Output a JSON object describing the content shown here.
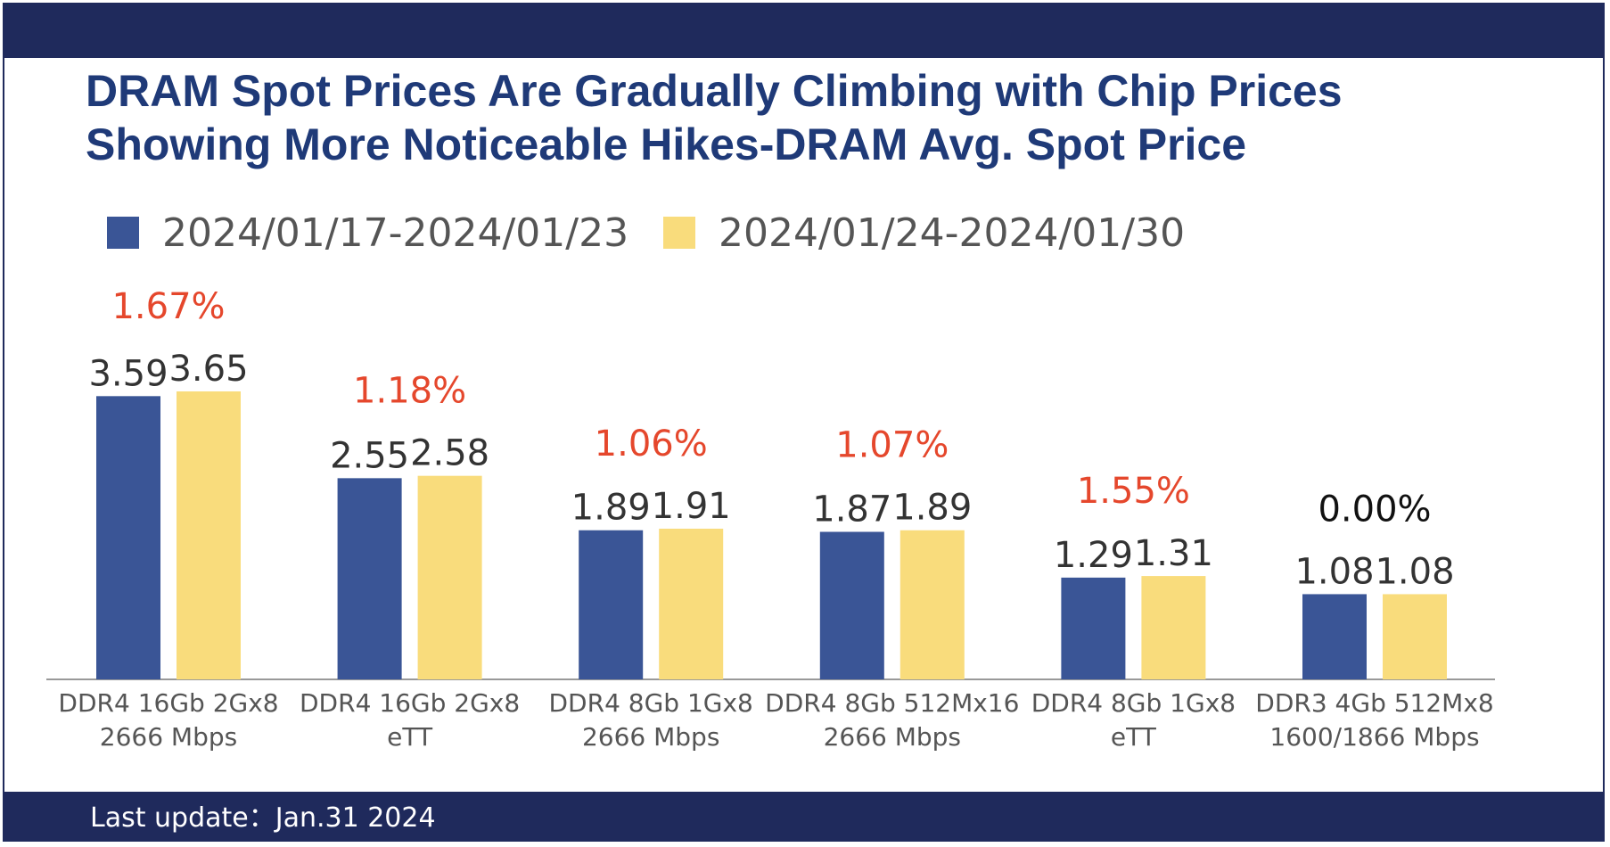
{
  "chart_data": {
    "type": "bar",
    "title": "DRAM Spot Prices Are Gradually Climbing with Chip Prices Showing More Noticeable Hikes-DRAM Avg. Spot Price",
    "title_lines": [
      "DRAM Spot Prices Are Gradually Climbing with Chip Prices",
      "Showing More Noticeable Hikes-DRAM Avg. Spot Price"
    ],
    "categories": [
      [
        "DDR4 16Gb 2Gx8",
        "2666 Mbps"
      ],
      [
        "DDR4 16Gb 2Gx8",
        "eTT"
      ],
      [
        "DDR4 8Gb 1Gx8",
        "2666 Mbps"
      ],
      [
        "DDR4 8Gb 512Mx16",
        "2666 Mbps"
      ],
      [
        "DDR4 8Gb 1Gx8",
        "eTT"
      ],
      [
        "DDR3 4Gb 512Mx8",
        "1600/1866 Mbps"
      ]
    ],
    "series": [
      {
        "name": "2024/01/17-2024/01/23",
        "color": "#3a5596",
        "values": [
          3.59,
          2.55,
          1.89,
          1.87,
          1.29,
          1.08
        ]
      },
      {
        "name": "2024/01/24-2024/01/30",
        "color": "#f9dc7c",
        "values": [
          3.65,
          2.58,
          1.91,
          1.89,
          1.31,
          1.08
        ]
      }
    ],
    "change_labels": [
      "1.67%",
      "1.18%",
      "1.06%",
      "1.07%",
      "1.55%",
      "0.00%"
    ],
    "change_colors": [
      "#e5472c",
      "#e5472c",
      "#e5472c",
      "#e5472c",
      "#e5472c",
      "#111111"
    ],
    "ylim": [
      0,
      3.65
    ],
    "grid": false,
    "legend_position": "top-left",
    "xlabel": "",
    "ylabel": ""
  },
  "footer": {
    "last_update": "Last update：Jan.31 2024"
  },
  "colors": {
    "brand_navy": "#1f2a5c",
    "title_blue": "#1f3a78"
  }
}
